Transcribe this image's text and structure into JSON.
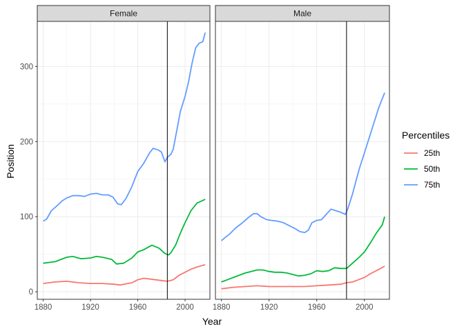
{
  "chart_data": {
    "type": "line",
    "xlabel": "Year",
    "ylabel": "Position",
    "xlim": [
      1875,
      2021
    ],
    "ylim": [
      -10,
      360
    ],
    "x_ticks": [
      "1880",
      "1920",
      "1960",
      "2000"
    ],
    "x_tick_values": [
      1880,
      1920,
      1960,
      2000
    ],
    "y_ticks": [
      "0",
      "100",
      "200",
      "300"
    ],
    "y_tick_values": [
      0,
      100,
      200,
      300
    ],
    "grid": true,
    "vline_x": 1985,
    "legend": {
      "title": "Percentiles",
      "placement": "right",
      "entries": [
        "25th",
        "50th",
        "75th"
      ]
    },
    "colors": {
      "25th": "#F8766D",
      "50th": "#00BA38",
      "75th": "#619CFF"
    },
    "panels": [
      {
        "label": "Female",
        "series": [
          {
            "name": "25th",
            "points": [
              [
                1880,
                11
              ],
              [
                1890,
                13
              ],
              [
                1900,
                14
              ],
              [
                1910,
                12
              ],
              [
                1920,
                11
              ],
              [
                1930,
                11
              ],
              [
                1940,
                10
              ],
              [
                1945,
                9
              ],
              [
                1955,
                12
              ],
              [
                1960,
                16
              ],
              [
                1965,
                18
              ],
              [
                1975,
                16
              ],
              [
                1980,
                15
              ],
              [
                1985,
                14
              ],
              [
                1990,
                16
              ],
              [
                1995,
                22
              ],
              [
                2000,
                26
              ],
              [
                2005,
                30
              ],
              [
                2010,
                33
              ],
              [
                2017,
                36
              ]
            ]
          },
          {
            "name": "50th",
            "points": [
              [
                1880,
                38
              ],
              [
                1890,
                40
              ],
              [
                1900,
                46
              ],
              [
                1905,
                47
              ],
              [
                1912,
                44
              ],
              [
                1920,
                45
              ],
              [
                1925,
                47
              ],
              [
                1930,
                46
              ],
              [
                1938,
                43
              ],
              [
                1942,
                37
              ],
              [
                1948,
                38
              ],
              [
                1955,
                45
              ],
              [
                1960,
                53
              ],
              [
                1965,
                56
              ],
              [
                1972,
                62
              ],
              [
                1978,
                58
              ],
              [
                1983,
                51
              ],
              [
                1986,
                49
              ],
              [
                1988,
                52
              ],
              [
                1992,
                62
              ],
              [
                1996,
                78
              ],
              [
                2000,
                92
              ],
              [
                2005,
                108
              ],
              [
                2010,
                118
              ],
              [
                2017,
                123
              ]
            ]
          },
          {
            "name": "75th",
            "points": [
              [
                1880,
                94
              ],
              [
                1883,
                97
              ],
              [
                1887,
                108
              ],
              [
                1892,
                115
              ],
              [
                1896,
                121
              ],
              [
                1900,
                125
              ],
              [
                1905,
                128
              ],
              [
                1910,
                128
              ],
              [
                1915,
                127
              ],
              [
                1920,
                130
              ],
              [
                1925,
                131
              ],
              [
                1930,
                129
              ],
              [
                1935,
                129
              ],
              [
                1939,
                126
              ],
              [
                1943,
                117
              ],
              [
                1946,
                116
              ],
              [
                1950,
                124
              ],
              [
                1955,
                140
              ],
              [
                1960,
                160
              ],
              [
                1965,
                171
              ],
              [
                1970,
                185
              ],
              [
                1973,
                191
              ],
              [
                1977,
                189
              ],
              [
                1980,
                186
              ],
              [
                1983,
                173
              ],
              [
                1985,
                179
              ],
              [
                1988,
                183
              ],
              [
                1990,
                190
              ],
              [
                1993,
                215
              ],
              [
                1996,
                240
              ],
              [
                2000,
                260
              ],
              [
                2003,
                280
              ],
              [
                2006,
                305
              ],
              [
                2009,
                325
              ],
              [
                2012,
                331
              ],
              [
                2015,
                333
              ],
              [
                2017,
                345
              ]
            ]
          }
        ]
      },
      {
        "label": "Male",
        "series": [
          {
            "name": "25th",
            "points": [
              [
                1880,
                4
              ],
              [
                1890,
                6
              ],
              [
                1900,
                7
              ],
              [
                1910,
                8
              ],
              [
                1920,
                7
              ],
              [
                1930,
                7
              ],
              [
                1940,
                7
              ],
              [
                1950,
                7
              ],
              [
                1960,
                8
              ],
              [
                1970,
                9
              ],
              [
                1980,
                10
              ],
              [
                1985,
                12
              ],
              [
                1990,
                13
              ],
              [
                1995,
                16
              ],
              [
                2000,
                19
              ],
              [
                2005,
                24
              ],
              [
                2010,
                28
              ],
              [
                2017,
                34
              ]
            ]
          },
          {
            "name": "50th",
            "points": [
              [
                1880,
                13
              ],
              [
                1885,
                16
              ],
              [
                1890,
                19
              ],
              [
                1895,
                22
              ],
              [
                1900,
                25
              ],
              [
                1905,
                27
              ],
              [
                1910,
                29
              ],
              [
                1915,
                29
              ],
              [
                1920,
                27
              ],
              [
                1925,
                26
              ],
              [
                1930,
                26
              ],
              [
                1935,
                25
              ],
              [
                1940,
                23
              ],
              [
                1945,
                21
              ],
              [
                1950,
                22
              ],
              [
                1955,
                24
              ],
              [
                1960,
                28
              ],
              [
                1965,
                27
              ],
              [
                1970,
                28
              ],
              [
                1975,
                32
              ],
              [
                1980,
                31
              ],
              [
                1985,
                31
              ],
              [
                1990,
                38
              ],
              [
                1995,
                45
              ],
              [
                2000,
                53
              ],
              [
                2005,
                65
              ],
              [
                2010,
                78
              ],
              [
                2015,
                89
              ],
              [
                2017,
                100
              ]
            ]
          },
          {
            "name": "75th",
            "points": [
              [
                1880,
                68
              ],
              [
                1883,
                72
              ],
              [
                1887,
                77
              ],
              [
                1892,
                85
              ],
              [
                1897,
                91
              ],
              [
                1902,
                98
              ],
              [
                1907,
                104
              ],
              [
                1910,
                104
              ],
              [
                1913,
                100
              ],
              [
                1918,
                96
              ],
              [
                1922,
                95
              ],
              [
                1927,
                94
              ],
              [
                1932,
                92
              ],
              [
                1937,
                88
              ],
              [
                1942,
                84
              ],
              [
                1946,
                80
              ],
              [
                1950,
                79
              ],
              [
                1953,
                82
              ],
              [
                1956,
                92
              ],
              [
                1960,
                95
              ],
              [
                1964,
                96
              ],
              [
                1968,
                103
              ],
              [
                1972,
                110
              ],
              [
                1976,
                108
              ],
              [
                1980,
                106
              ],
              [
                1984,
                103
              ],
              [
                1986,
                110
              ],
              [
                1990,
                130
              ],
              [
                1993,
                148
              ],
              [
                1996,
                165
              ],
              [
                2000,
                185
              ],
              [
                2004,
                205
              ],
              [
                2008,
                225
              ],
              [
                2012,
                245
              ],
              [
                2015,
                257
              ],
              [
                2017,
                265
              ]
            ]
          }
        ]
      }
    ]
  }
}
